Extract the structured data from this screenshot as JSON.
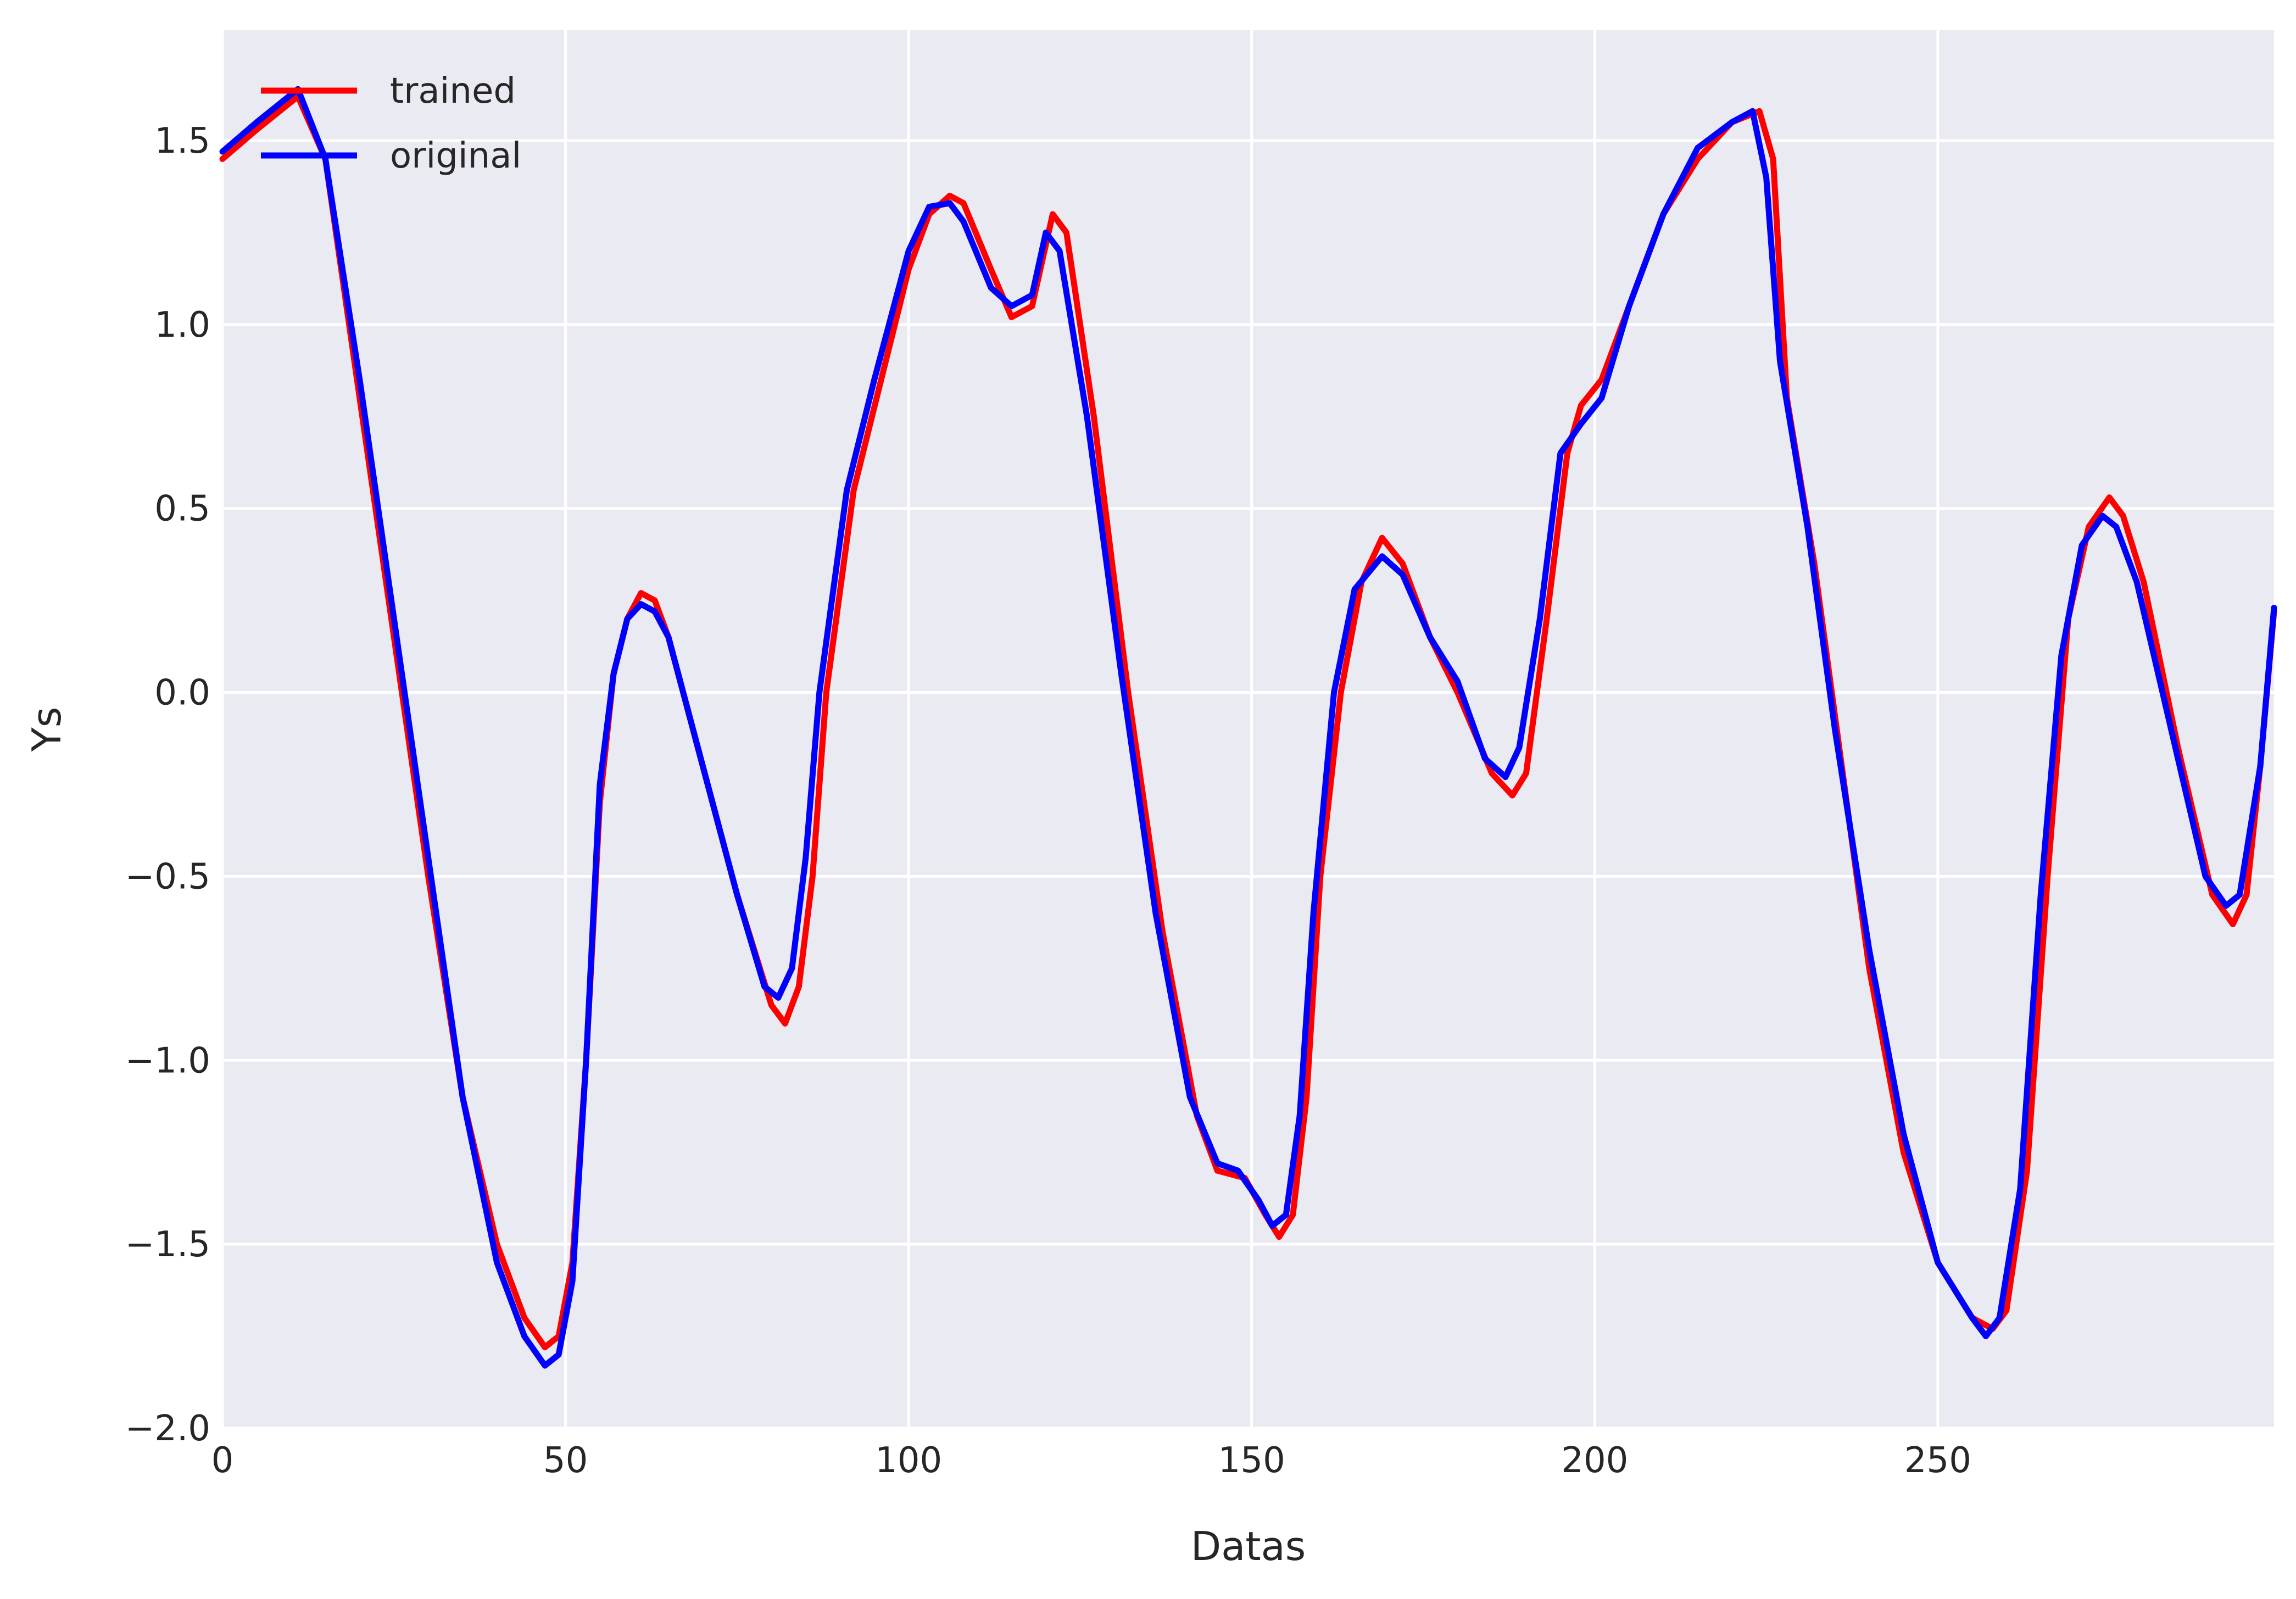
{
  "chart_data": {
    "type": "line",
    "title": "",
    "xlabel": "Datas",
    "ylabel": "Ys",
    "xlim": [
      0,
      299
    ],
    "ylim": [
      -2.0,
      1.8
    ],
    "xticks": [
      0,
      50,
      100,
      150,
      200,
      250
    ],
    "xtick_labels": [
      "0",
      "50",
      "100",
      "150",
      "200",
      "250"
    ],
    "yticks": [
      1.5,
      1.0,
      0.5,
      0.0,
      -0.5,
      -1.0,
      -1.5,
      -2.0
    ],
    "ytick_labels": [
      "1.5",
      "1.0",
      "0.5",
      "0.0",
      "−0.5",
      "−1.0",
      "−1.5",
      "−2.0"
    ],
    "grid": true,
    "legend_position": "top-left",
    "background_color": "#eaeaf2",
    "grid_color": "#ffffff",
    "series": [
      {
        "name": "trained",
        "color": "#ff0000",
        "x": [
          0,
          5,
          11,
          15,
          20,
          25,
          30,
          35,
          40,
          44,
          47,
          49,
          51,
          53,
          55,
          57,
          59,
          61,
          63,
          65,
          70,
          75,
          80,
          82,
          84,
          86,
          88,
          92,
          96,
          100,
          103,
          106,
          108,
          112,
          115,
          118,
          121,
          123,
          127,
          132,
          137,
          142,
          145,
          149,
          152,
          154,
          156,
          158,
          160,
          163,
          166,
          169,
          172,
          176,
          180,
          185,
          188,
          190,
          193,
          196,
          198,
          201,
          205,
          210,
          215,
          220,
          224,
          226,
          228,
          232,
          236,
          240,
          245,
          250,
          255,
          258,
          260,
          263,
          266,
          269,
          272,
          275,
          277,
          280,
          285,
          290,
          293,
          295,
          297,
          299
        ],
        "y": [
          1.45,
          1.53,
          1.62,
          1.45,
          0.8,
          0.15,
          -0.5,
          -1.1,
          -1.5,
          -1.7,
          -1.78,
          -1.75,
          -1.55,
          -1.0,
          -0.3,
          0.05,
          0.2,
          0.27,
          0.25,
          0.15,
          -0.2,
          -0.55,
          -0.85,
          -0.9,
          -0.8,
          -0.5,
          0.0,
          0.55,
          0.85,
          1.15,
          1.3,
          1.35,
          1.33,
          1.15,
          1.02,
          1.05,
          1.3,
          1.25,
          0.75,
          0.0,
          -0.65,
          -1.15,
          -1.3,
          -1.32,
          -1.42,
          -1.48,
          -1.42,
          -1.1,
          -0.5,
          0.0,
          0.3,
          0.42,
          0.35,
          0.15,
          0.0,
          -0.22,
          -0.28,
          -0.22,
          0.2,
          0.65,
          0.78,
          0.85,
          1.05,
          1.3,
          1.45,
          1.55,
          1.58,
          1.45,
          0.8,
          0.35,
          -0.2,
          -0.75,
          -1.25,
          -1.55,
          -1.7,
          -1.73,
          -1.68,
          -1.3,
          -0.5,
          0.2,
          0.45,
          0.53,
          0.48,
          0.3,
          -0.15,
          -0.55,
          -0.63,
          -0.55,
          -0.2,
          0.22
        ]
      },
      {
        "name": "original",
        "color": "#0000ff",
        "x": [
          0,
          5,
          11,
          15,
          20,
          25,
          30,
          35,
          40,
          44,
          47,
          49,
          51,
          53,
          55,
          57,
          59,
          61,
          63,
          65,
          70,
          75,
          79,
          81,
          83,
          85,
          87,
          91,
          95,
          100,
          103,
          106,
          108,
          112,
          115,
          118,
          120,
          122,
          126,
          131,
          136,
          141,
          145,
          148,
          151,
          153,
          155,
          157,
          159,
          162,
          165,
          169,
          172,
          176,
          180,
          184,
          187,
          189,
          192,
          195,
          198,
          201,
          205,
          210,
          215,
          220,
          223,
          225,
          227,
          231,
          235,
          240,
          245,
          250,
          255,
          257,
          259,
          262,
          265,
          268,
          271,
          274,
          276,
          279,
          284,
          289,
          292,
          294,
          297,
          299
        ],
        "y": [
          1.47,
          1.55,
          1.64,
          1.45,
          0.85,
          0.2,
          -0.45,
          -1.1,
          -1.55,
          -1.75,
          -1.83,
          -1.8,
          -1.6,
          -1.0,
          -0.25,
          0.05,
          0.2,
          0.24,
          0.22,
          0.15,
          -0.2,
          -0.55,
          -0.8,
          -0.83,
          -0.75,
          -0.45,
          0.0,
          0.55,
          0.85,
          1.2,
          1.32,
          1.33,
          1.28,
          1.1,
          1.05,
          1.08,
          1.25,
          1.2,
          0.75,
          0.05,
          -0.6,
          -1.1,
          -1.28,
          -1.3,
          -1.38,
          -1.45,
          -1.42,
          -1.15,
          -0.6,
          0.0,
          0.28,
          0.37,
          0.32,
          0.15,
          0.03,
          -0.18,
          -0.23,
          -0.15,
          0.2,
          0.65,
          0.73,
          0.8,
          1.05,
          1.3,
          1.48,
          1.55,
          1.58,
          1.4,
          0.9,
          0.45,
          -0.1,
          -0.7,
          -1.2,
          -1.55,
          -1.7,
          -1.75,
          -1.7,
          -1.35,
          -0.55,
          0.1,
          0.4,
          0.48,
          0.45,
          0.3,
          -0.1,
          -0.5,
          -0.58,
          -0.55,
          -0.2,
          0.23
        ]
      }
    ]
  }
}
